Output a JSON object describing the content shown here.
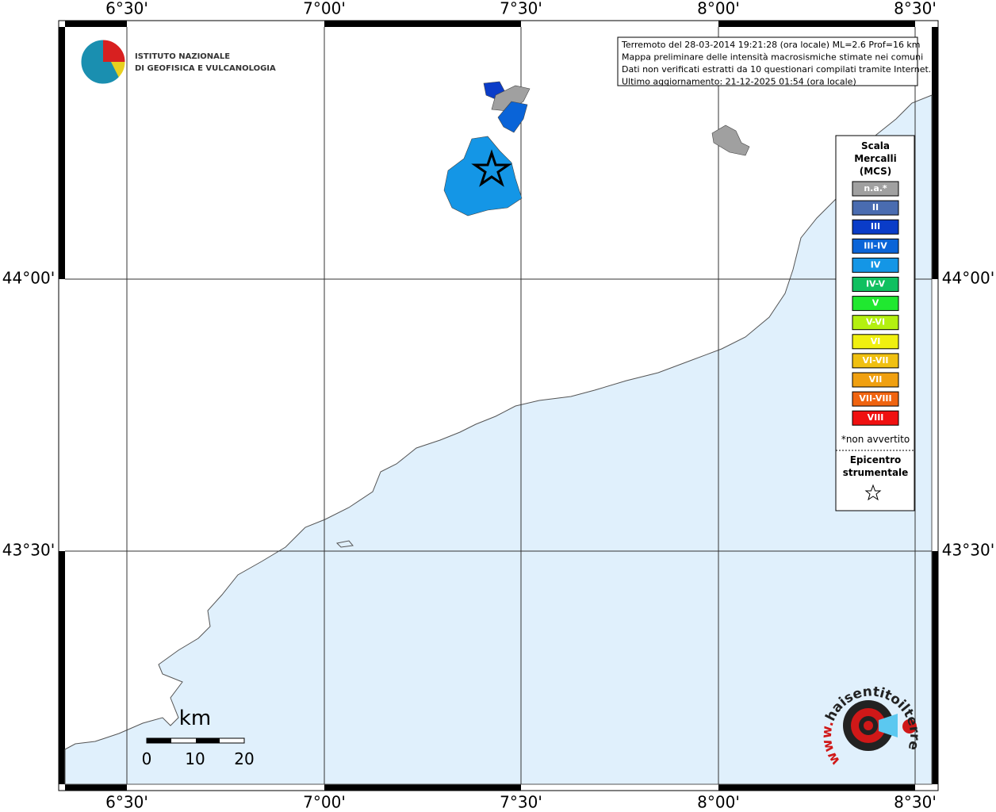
{
  "map": {
    "lon_ticks": [
      "6°30'",
      "7°00'",
      "7°30'",
      "8°00'",
      "8°30'"
    ],
    "lat_ticks": [
      "44°00'",
      "43°30'"
    ],
    "logo": [
      "ISTITUTO NAZIONALE",
      "DI GEOFISICA E VULCANOLOGIA"
    ],
    "info": [
      "Terremoto del 28-03-2014 19:21:28 (ora locale) ML=2.6 Prof=16 km",
      "Mappa preliminare delle intensità macrosismiche stimate nei comuni",
      "Dati non verificati estratti da 10 questionari compilati tramite Internet.",
      "Ultimo aggiornamento: 21-12-2025 01:54 (ora locale)"
    ],
    "legend": {
      "title": [
        "Scala",
        "Mercalli",
        "(MCS)"
      ],
      "items": [
        {
          "label": "n.a.*",
          "color": "#a0a0a0"
        },
        {
          "label": "II",
          "color": "#4a6cb0"
        },
        {
          "label": "III",
          "color": "#0a3cc8"
        },
        {
          "label": "III-IV",
          "color": "#0a64d8"
        },
        {
          "label": "IV",
          "color": "#1496e6"
        },
        {
          "label": "IV-V",
          "color": "#10c060"
        },
        {
          "label": "V",
          "color": "#20e830"
        },
        {
          "label": "V-VI",
          "color": "#b4f010"
        },
        {
          "label": "VI",
          "color": "#f0f010"
        },
        {
          "label": "VI-VII",
          "color": "#f0c010"
        },
        {
          "label": "VII",
          "color": "#f0a010"
        },
        {
          "label": "VII-VIII",
          "color": "#f06410"
        },
        {
          "label": "VIII",
          "color": "#f01010"
        }
      ],
      "note": "*non avvertito",
      "epicenter": [
        "Epicentro",
        "strumentale"
      ]
    },
    "scale_bar": {
      "unit": "km",
      "labels": [
        "0",
        "10",
        "20"
      ]
    },
    "brand": {
      "prefix": "www.",
      "name": "haisentitoilterremoto.it"
    }
  }
}
